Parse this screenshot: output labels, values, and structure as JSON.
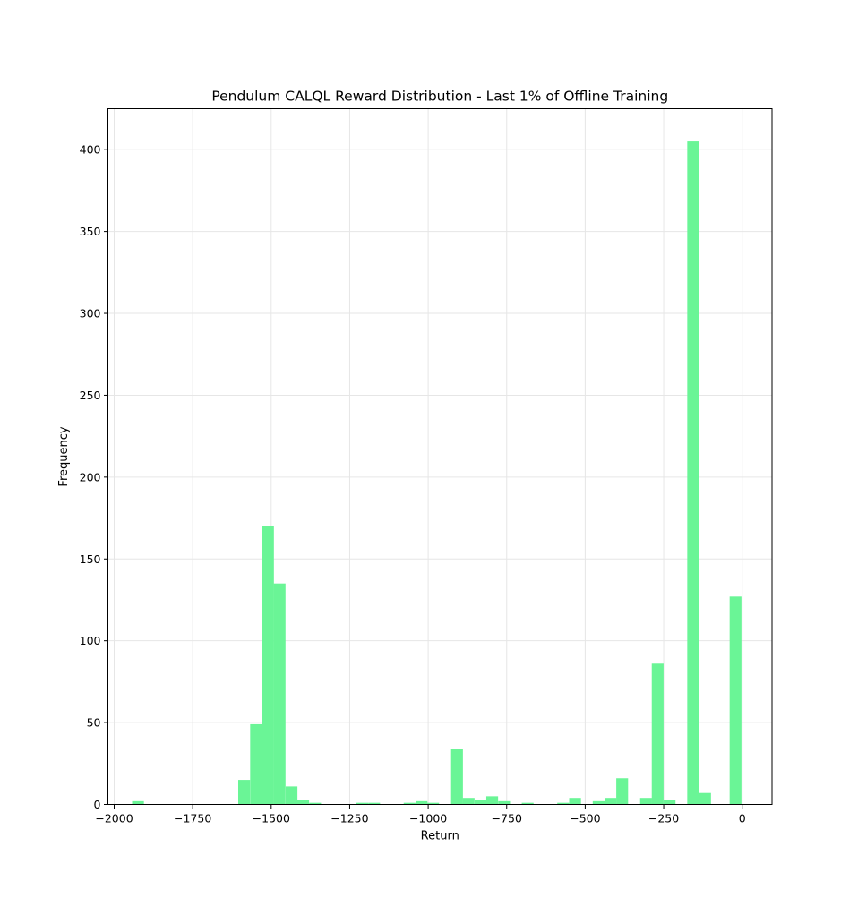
{
  "chart_data": {
    "type": "bar",
    "title": "Pendulum CALQL Reward Distribution - Last 1% of Offline Training",
    "xlabel": "Return",
    "ylabel": "Frequency",
    "xlim": [
      -2020,
      95
    ],
    "ylim": [
      0,
      425
    ],
    "grid": true,
    "bar_color": "#6af596",
    "axis_color": "#000000",
    "grid_color": "#e6e6e6",
    "bin_width": 37.6,
    "x_ticks": [
      {
        "value": -2000,
        "label": "−2000"
      },
      {
        "value": -1750,
        "label": "−1750"
      },
      {
        "value": -1500,
        "label": "−1500"
      },
      {
        "value": -1250,
        "label": "−1250"
      },
      {
        "value": -1000,
        "label": "−1000"
      },
      {
        "value": -750,
        "label": "−750"
      },
      {
        "value": -500,
        "label": "−500"
      },
      {
        "value": -250,
        "label": "−250"
      },
      {
        "value": 0,
        "label": "0"
      }
    ],
    "y_ticks": [
      {
        "value": 0,
        "label": "0"
      },
      {
        "value": 50,
        "label": "50"
      },
      {
        "value": 100,
        "label": "100"
      },
      {
        "value": 150,
        "label": "150"
      },
      {
        "value": 200,
        "label": "200"
      },
      {
        "value": 250,
        "label": "250"
      },
      {
        "value": 300,
        "label": "300"
      },
      {
        "value": 350,
        "label": "350"
      },
      {
        "value": 400,
        "label": "400"
      }
    ],
    "bins": [
      {
        "x": -1943.0,
        "count": 2
      },
      {
        "x": -1605.0,
        "count": 15
      },
      {
        "x": -1567.0,
        "count": 49
      },
      {
        "x": -1529.0,
        "count": 170
      },
      {
        "x": -1492.0,
        "count": 135
      },
      {
        "x": -1454.0,
        "count": 11
      },
      {
        "x": -1417.0,
        "count": 3
      },
      {
        "x": -1379.0,
        "count": 1
      },
      {
        "x": -1229.0,
        "count": 1
      },
      {
        "x": -1191.0,
        "count": 1
      },
      {
        "x": -1078.0,
        "count": 1
      },
      {
        "x": -1040.0,
        "count": 2
      },
      {
        "x": -1003.0,
        "count": 1
      },
      {
        "x": -927.0,
        "count": 34
      },
      {
        "x": -890.0,
        "count": 4
      },
      {
        "x": -852.0,
        "count": 3
      },
      {
        "x": -815.0,
        "count": 5
      },
      {
        "x": -777.0,
        "count": 2
      },
      {
        "x": -702.0,
        "count": 1
      },
      {
        "x": -589.0,
        "count": 1
      },
      {
        "x": -551.0,
        "count": 4
      },
      {
        "x": -476.0,
        "count": 2
      },
      {
        "x": -438.0,
        "count": 4
      },
      {
        "x": -401.0,
        "count": 16
      },
      {
        "x": -325.0,
        "count": 4
      },
      {
        "x": -288.0,
        "count": 86
      },
      {
        "x": -250.0,
        "count": 3
      },
      {
        "x": -175.0,
        "count": 405
      },
      {
        "x": -137.0,
        "count": 7
      },
      {
        "x": -40.0,
        "count": 127
      }
    ]
  }
}
